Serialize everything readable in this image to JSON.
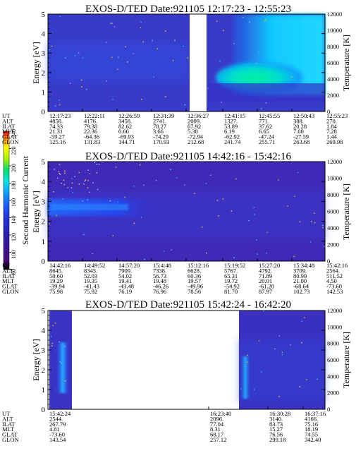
{
  "colorbar": {
    "label": "Second Harmonic Current",
    "ticks": [
      80,
      100,
      120,
      140,
      160,
      180,
      200,
      220,
      240
    ],
    "colors": [
      "#000000",
      "#4b0a7a",
      "#2e1aa6",
      "#2230d6",
      "#1d56ff",
      "#0aa6ff",
      "#00e5e5",
      "#00e070",
      "#a8f000",
      "#ffff00",
      "#ff9a00",
      "#ff0000"
    ]
  },
  "chart_data": [
    {
      "type": "heatmap",
      "title": "EXOS-D/TED   Date:921105   12:17:23 - 12:55:23",
      "ylabel": "Energy [eV]",
      "y2label": "Temperature [K]",
      "ylim": [
        0,
        5
      ],
      "y2lim": [
        0,
        12000
      ],
      "yticks": [
        "0",
        "1",
        "2",
        "3",
        "4",
        "5"
      ],
      "y2ticks": [
        "0",
        "2000",
        "4000",
        "6000",
        "8000",
        "10000",
        "12000"
      ],
      "data_gap": [
        "12:36:27",
        "12:41:15"
      ],
      "row_labels": [
        "UT",
        "ALT",
        "ILAT",
        "MLT",
        "GLAT",
        "GLON"
      ],
      "columns": [
        [
          "12:17:23",
          "4858.",
          "74.33",
          "21.31",
          "-59.27",
          "125.16"
        ],
        [
          "12:22:11",
          "4176.",
          "79.38",
          "22.36",
          "-64.36",
          "131.83"
        ],
        [
          "12:26:59",
          "3458.",
          "82.62",
          "0.66",
          "-69.93",
          "144.71"
        ],
        [
          "12:31:39",
          "2741.",
          "78.27",
          "3.66",
          "-74.29",
          "170.93"
        ],
        [
          "12:36:27",
          "2009.",
          "67.92",
          "5.38",
          "-72.94",
          "212.68"
        ],
        [
          "12:41:15",
          "1327.",
          "53.89",
          "6.19",
          "-62.92",
          "241.74"
        ],
        [
          "12:45:55",
          "771.",
          "37.62",
          "6.65",
          "-47.24",
          "255.71"
        ],
        [
          "12:50:43",
          "388.",
          "20.28",
          "7.00",
          "-27.59",
          "263.68"
        ],
        [
          "12:55:23",
          "270.",
          "1.84",
          "7.28",
          "1.44",
          "269.98"
        ]
      ]
    },
    {
      "type": "heatmap",
      "title": "EXOS-D/TED   Date:921105   14:42:16 - 15:42:16",
      "ylabel": "Energy [eV]",
      "y2label": "Temperature [K]",
      "ylim": [
        0,
        5
      ],
      "y2lim": [
        0,
        12000
      ],
      "yticks": [
        "0",
        "1",
        "2",
        "3",
        "4",
        "5"
      ],
      "y2ticks": [
        "0",
        "2000",
        "4000",
        "6000",
        "8000",
        "10000",
        "12000"
      ],
      "row_labels": [
        "UT",
        "ALT",
        "ILAT",
        "MLT",
        "GLAT",
        "GLON"
      ],
      "columns": [
        [
          "14:42:16",
          "8645.",
          "50.60",
          "19.29",
          "-39.94",
          "75.98"
        ],
        [
          "14:49:52",
          "8343.",
          "52.03",
          "19.35",
          "-41.43",
          "75.92"
        ],
        [
          "14:57:20",
          "7909.",
          "54.02",
          "19.41",
          "-43.48",
          "76.19"
        ],
        [
          "15:4:48",
          "7338.",
          "56.73",
          "19.48",
          "-46.26",
          "76.96"
        ],
        [
          "15:12:16",
          "6628.",
          "60.36",
          "19.57",
          "-49.96",
          "78.56"
        ],
        [
          "15:19:52",
          "5767.",
          "65.31",
          "19.72",
          "-54.92",
          "81.70"
        ],
        [
          "15:27:20",
          "4792.",
          "71.89",
          "20.01",
          "-61.20",
          "87.97"
        ],
        [
          "15:34:48",
          "3709.",
          "80.99",
          "21.00",
          "-68.64",
          "102.73"
        ],
        [
          "15:42:16",
          "2564.",
          "511.52",
          "4.50",
          "-73.60",
          "142.53"
        ]
      ]
    },
    {
      "type": "heatmap",
      "title": "EXOS-D/TED   Date:921105   15:42:24 - 16:42:20",
      "ylabel": "Energy [eV]",
      "y2label": "Temperature [K]",
      "ylim": [
        0,
        5
      ],
      "y2lim": [
        0,
        12000
      ],
      "yticks": [
        "0",
        "1",
        "2",
        "3",
        "4",
        "5"
      ],
      "y2ticks": [
        "0",
        "2000",
        "4000",
        "6000",
        "8000",
        "10000",
        "12000"
      ],
      "data_gap": [
        "15:42:24",
        "16:23:40"
      ],
      "row_labels": [
        "UT",
        "ALT",
        "ILAT",
        "MLT",
        "GLAT",
        "GLON"
      ],
      "columns": [
        [
          "15:42:24",
          "2544.",
          "267.79",
          "4.81",
          "-73.60",
          "143.54"
        ],
        [
          "16:23:40",
          "2096.",
          "77.04",
          "8.31",
          "68.17",
          "257.12"
        ],
        [
          "16:30:28",
          "3140.",
          "83.73",
          "15.27",
          "76.56",
          "299.18"
        ],
        [
          "16:37:16",
          "4166.",
          "75.16",
          "18.19",
          "74.55",
          "342.40"
        ]
      ]
    }
  ]
}
